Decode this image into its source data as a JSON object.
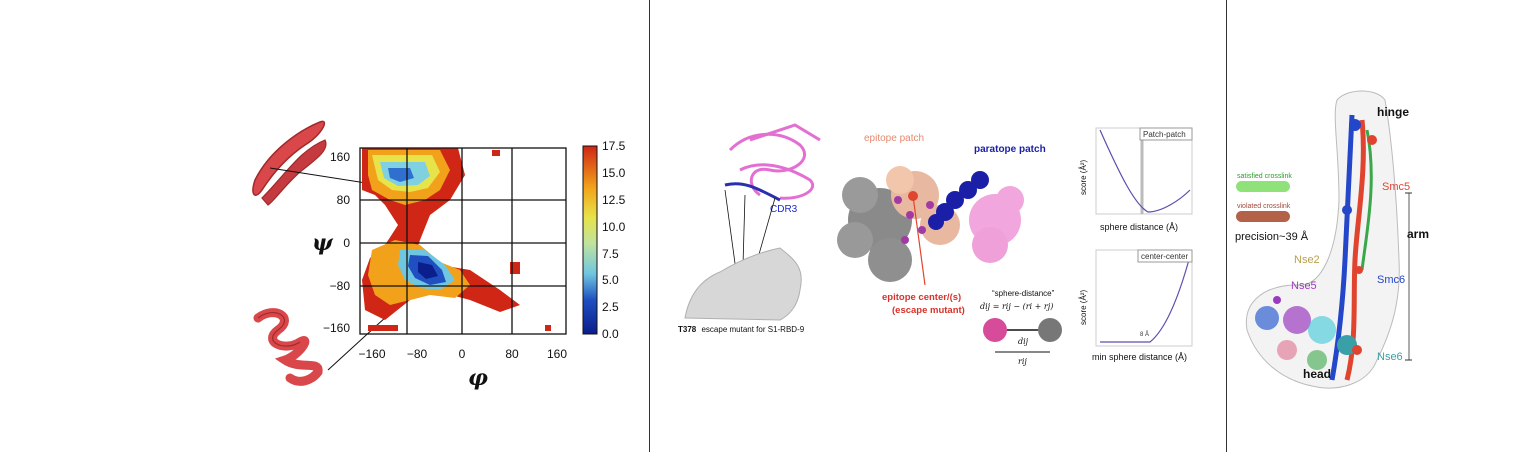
{
  "panel1": {
    "ylabel": "ψ",
    "xlabel": "φ",
    "xticks": [
      "−160",
      "−80",
      "0",
      "80",
      "160"
    ],
    "yticks": [
      "160",
      "80",
      "0",
      "−80",
      "−160"
    ],
    "colorbar_ticks": [
      "17.5",
      "15.0",
      "12.5",
      "10.0",
      "7.5",
      "5.0",
      "2.5",
      "0.0"
    ]
  },
  "panel2": {
    "cdr3": "CDR3",
    "t378_bold": "T378",
    "t378_rest": "escape mutant for S1-RBD-9",
    "epitope_patch": "epitope patch",
    "paratope_patch": "paratope patch",
    "epitope_center_1": "epitope center/(s)",
    "epitope_center_2": "(escape mutant)",
    "sphere_distance_title": "“sphere-distance”",
    "sphere_formula": "dij = rij − (ri + rj)",
    "dij": "dij",
    "rij": "rij",
    "plot_top_legend": "Patch-patch",
    "plot_top_ylabel": "score (Å²)",
    "plot_top_xlabel": "sphere distance (Å)",
    "plot_bot_legend": "center-center",
    "plot_bot_ylabel": "score (Å²)",
    "plot_bot_xlabel": "min sphere distance (Å)",
    "plot_bot_annot": "8 Å"
  },
  "panel3": {
    "hinge": "hinge",
    "arm": "arm",
    "head": "head",
    "smc5": "Smc5",
    "smc6": "Smc6",
    "nse2": "Nse2",
    "nse5": "Nse5",
    "nse6": "Nse6",
    "satisfied": "satisfied crosslink",
    "violated": "violated crosslink",
    "precision": "precision~39 Å",
    "colors": {
      "satisfied": "#8fe27a",
      "violated": "#b4614a",
      "smc5": "#e0442f",
      "smc6": "#2446c8",
      "nse2": "#b9a04a",
      "nse5": "#9a3bbf",
      "nse6": "#3aa0a8"
    }
  }
}
